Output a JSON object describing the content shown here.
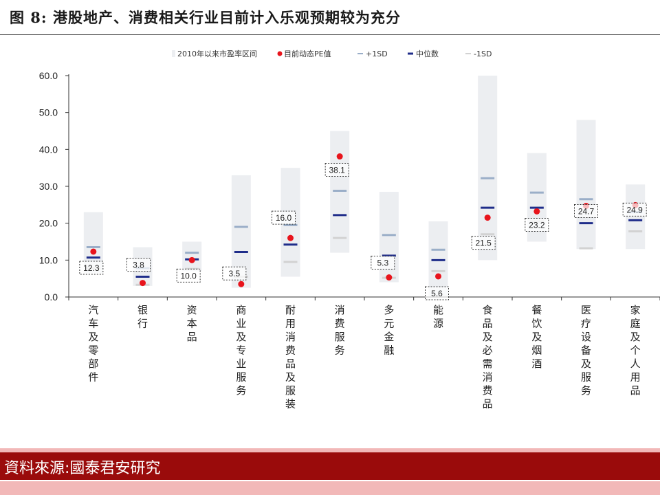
{
  "header": {
    "title": "图 8: 港股地产、消费相关行业目前计入乐观预期较为充分"
  },
  "footer": {
    "source": "資料來源:國泰君安研究"
  },
  "colors": {
    "range": "#eceef1",
    "current": "#e8141c",
    "plus1sd": "#9aaec8",
    "median": "#1f2d8a",
    "minus1sd": "#d2d2d2",
    "source_bar": "#9a0b0b",
    "source_band": "#f2b8b8"
  },
  "chart_data": {
    "type": "range-dot",
    "title": "",
    "ylim": [
      0,
      60
    ],
    "yticks": [
      "60.0",
      "50.0",
      "40.0",
      "30.0",
      "20.0",
      "10.0",
      "0.0"
    ],
    "legend": {
      "placement": "top",
      "items": [
        "2010年以来市盈率区间",
        "目前动态PE值",
        "+1SD",
        "中位数",
        "-1SD"
      ]
    },
    "categories": [
      "汽车及零部件",
      "银行",
      "资本品",
      "商业及专业服务",
      "耐用消费品及服装",
      "消费服务",
      "多元金融",
      "能源",
      "食品及必需消费品",
      "餐饮及烟酒",
      "医疗设备及服务",
      "家庭及个人用品"
    ],
    "range_low": [
      6.5,
      3.0,
      7.0,
      2.5,
      5.5,
      12.0,
      4.0,
      0.2,
      10.0,
      15.0,
      13.0,
      13.0
    ],
    "range_high": [
      23.0,
      13.5,
      15.0,
      33.0,
      35.0,
      45.0,
      28.5,
      20.5,
      60.0,
      39.0,
      48.0,
      30.5
    ],
    "plus1sd": [
      13.5,
      7.8,
      12.0,
      19.0,
      19.5,
      28.8,
      16.8,
      12.8,
      32.2,
      28.3,
      26.5,
      23.0
    ],
    "median": [
      10.7,
      5.5,
      10.2,
      12.2,
      14.2,
      22.2,
      11.2,
      10.0,
      24.2,
      24.2,
      20.0,
      20.8
    ],
    "minus1sd": [
      7.8,
      3.3,
      7.6,
      5.5,
      9.5,
      16.0,
      5.2,
      7.0,
      17.0,
      20.5,
      13.2,
      17.8
    ],
    "current": [
      12.3,
      3.8,
      10.0,
      3.5,
      16.0,
      38.1,
      5.3,
      5.6,
      21.5,
      23.2,
      24.7,
      24.9
    ],
    "current_labels": [
      "12.3",
      "3.8",
      "10.0",
      "3.5",
      "16.0",
      "38.1",
      "5.3",
      "5.6",
      "21.5",
      "23.2",
      "24.7",
      "24.9"
    ]
  }
}
